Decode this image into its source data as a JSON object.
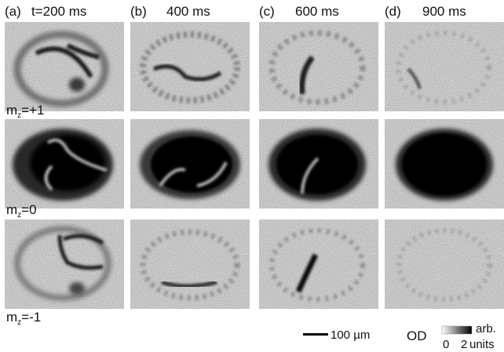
{
  "columns": [
    {
      "tag": "(a)",
      "label": "t=200 ms"
    },
    {
      "tag": "(b)",
      "label": "400 ms"
    },
    {
      "tag": "(c)",
      "label": "600 ms"
    },
    {
      "tag": "(d)",
      "label": "900 ms"
    }
  ],
  "rows": [
    {
      "symbol": "m",
      "subscript": "z",
      "value": "=+1"
    },
    {
      "symbol": "m",
      "subscript": "z",
      "value": "=0"
    },
    {
      "symbol": "m",
      "subscript": "z",
      "value": "=-1"
    }
  ],
  "scale_bar": "100 µm",
  "colorbar": {
    "label": "OD",
    "min": "0",
    "max": "2",
    "unit_top": "arb.",
    "unit_bottom": "units"
  }
}
